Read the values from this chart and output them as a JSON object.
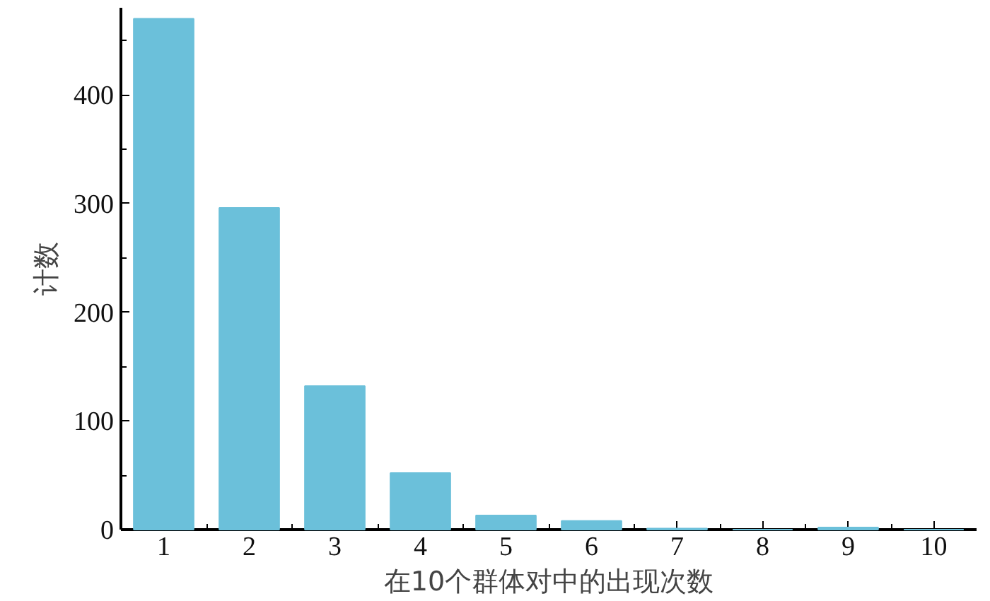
{
  "chart_data": {
    "type": "bar",
    "xlabel": "在10个群体对中的出现次数",
    "ylabel": "计数",
    "categories": [
      "1",
      "2",
      "3",
      "4",
      "5",
      "6",
      "7",
      "8",
      "9",
      "10"
    ],
    "values": [
      470,
      296,
      132,
      52,
      13,
      8,
      1,
      0,
      2,
      0
    ],
    "color": "#6bc0da",
    "ylim": [
      0,
      480
    ],
    "yticks": [
      0,
      100,
      200,
      300,
      400
    ],
    "grid": false
  }
}
